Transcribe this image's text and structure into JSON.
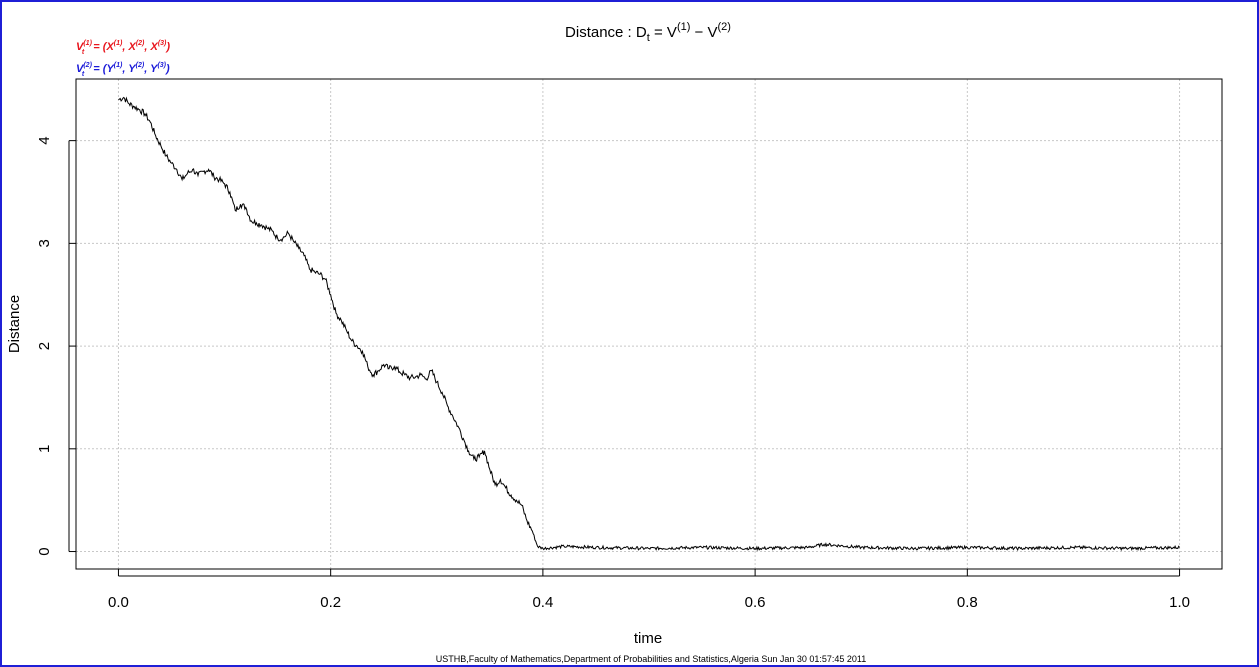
{
  "chart_data": {
    "type": "line",
    "title": {
      "prefix": "Distance : ",
      "D": "D",
      "sub_t": "t",
      "eq": " = ",
      "V": "V",
      "sup1": "(1)",
      "minus": " − ",
      "sup2": "(2)"
    },
    "legend": {
      "placement": "top-left",
      "v1": {
        "base": "V",
        "sup": "(1)",
        "sub": "t",
        "text": " = (X",
        "x1sup": "(1)",
        "comma1": ", X",
        "x2sup": "(2)",
        "comma2": ", X",
        "x3sup": "(3)",
        "close": ")",
        "color": "#e8141c"
      },
      "v2": {
        "base": "V",
        "sup": "(2)",
        "sub": "t",
        "text": " = (Y",
        "x1sup": "(1)",
        "comma1": ", Y",
        "x2sup": "(2)",
        "comma2": ", Y",
        "x3sup": "(3)",
        "close": ")",
        "color": "#1a1ad8"
      }
    },
    "xlabel": "time",
    "ylabel": "Distance",
    "xlim": [
      -0.04,
      1.04
    ],
    "ylim": [
      -0.17,
      4.6
    ],
    "grid": true,
    "xticks": [
      0.0,
      0.2,
      0.4,
      0.6,
      0.8,
      1.0
    ],
    "xtick_labels": [
      "0.0",
      "0.2",
      "0.4",
      "0.6",
      "0.8",
      "1.0"
    ],
    "yticks": [
      0,
      1,
      2,
      3,
      4
    ],
    "ytick_labels": [
      "0",
      "1",
      "2",
      "3",
      "4"
    ],
    "series": [
      {
        "color": "#000000",
        "x": [
          0.0,
          0.005,
          0.01,
          0.015,
          0.02,
          0.025,
          0.03,
          0.035,
          0.04,
          0.045,
          0.05,
          0.055,
          0.06,
          0.065,
          0.07,
          0.075,
          0.08,
          0.085,
          0.09,
          0.095,
          0.1,
          0.105,
          0.11,
          0.115,
          0.12,
          0.125,
          0.13,
          0.135,
          0.14,
          0.145,
          0.15,
          0.155,
          0.16,
          0.165,
          0.17,
          0.175,
          0.18,
          0.185,
          0.19,
          0.195,
          0.2,
          0.205,
          0.21,
          0.215,
          0.22,
          0.225,
          0.23,
          0.235,
          0.24,
          0.245,
          0.25,
          0.255,
          0.26,
          0.265,
          0.27,
          0.275,
          0.28,
          0.285,
          0.29,
          0.295,
          0.3,
          0.305,
          0.31,
          0.315,
          0.32,
          0.325,
          0.33,
          0.335,
          0.34,
          0.345,
          0.35,
          0.355,
          0.36,
          0.365,
          0.37,
          0.375,
          0.38,
          0.385,
          0.39,
          0.395,
          0.4,
          0.42,
          0.45,
          0.5,
          0.55,
          0.6,
          0.65,
          0.665,
          0.7,
          0.75,
          0.8,
          0.85,
          0.9,
          0.95,
          1.0
        ],
        "y": [
          4.4,
          4.42,
          4.36,
          4.33,
          4.3,
          4.26,
          4.18,
          4.05,
          3.95,
          3.85,
          3.78,
          3.72,
          3.62,
          3.68,
          3.72,
          3.66,
          3.7,
          3.72,
          3.65,
          3.62,
          3.58,
          3.5,
          3.32,
          3.38,
          3.35,
          3.22,
          3.2,
          3.18,
          3.15,
          3.12,
          3.05,
          3.05,
          3.1,
          3.02,
          2.95,
          2.88,
          2.75,
          2.72,
          2.7,
          2.65,
          2.5,
          2.32,
          2.25,
          2.15,
          2.05,
          2.0,
          1.95,
          1.8,
          1.72,
          1.76,
          1.82,
          1.78,
          1.8,
          1.75,
          1.72,
          1.69,
          1.7,
          1.72,
          1.68,
          1.76,
          1.65,
          1.55,
          1.42,
          1.32,
          1.22,
          1.1,
          0.98,
          0.9,
          0.92,
          0.98,
          0.8,
          0.65,
          0.7,
          0.62,
          0.55,
          0.5,
          0.45,
          0.3,
          0.2,
          0.05,
          0.03,
          0.05,
          0.04,
          0.03,
          0.04,
          0.03,
          0.04,
          0.07,
          0.04,
          0.03,
          0.04,
          0.03,
          0.04,
          0.03,
          0.04
        ]
      }
    ]
  },
  "footer": "USTHB,Faculty of Mathematics,Department of Probabilities and Statistics,Algeria Sun Jan 30 01:57:45 2011"
}
